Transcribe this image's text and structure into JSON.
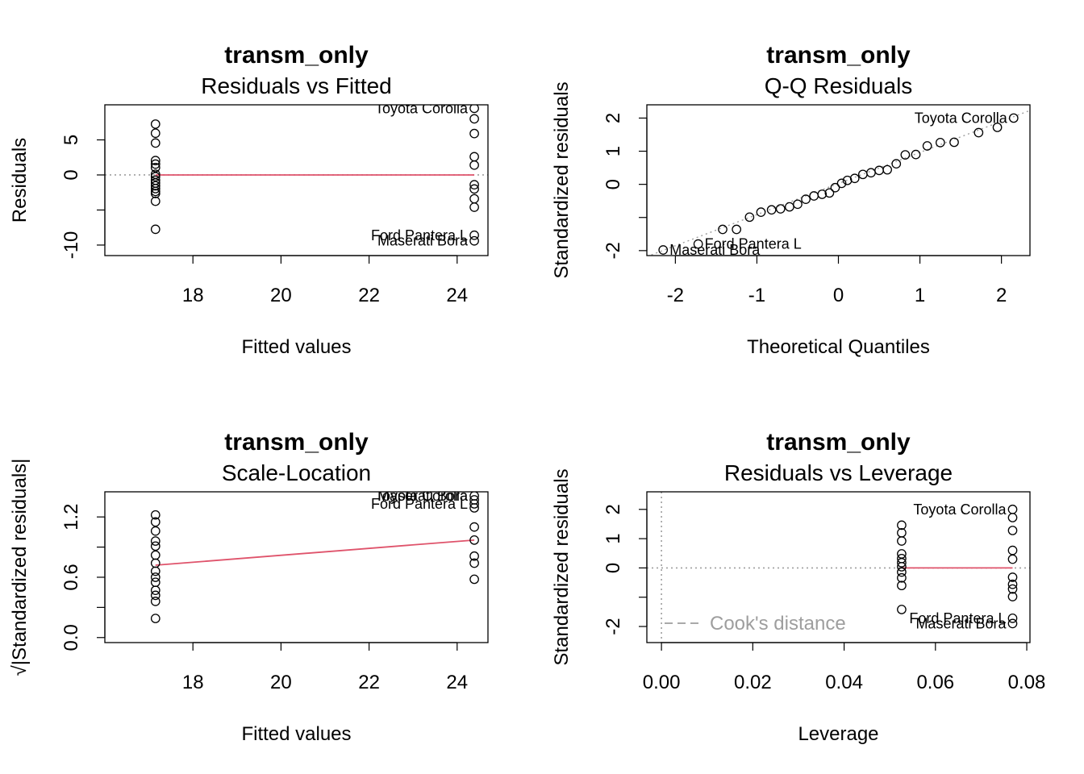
{
  "chart_data": [
    {
      "type": "scatter",
      "title": "transm_only",
      "subtitle": "Residuals vs Fitted",
      "xlabel": "Fitted values",
      "ylabel": "Residuals",
      "xlim": [
        16.0,
        24.7
      ],
      "ylim": [
        -11.5,
        10.0
      ],
      "xticks": [
        18,
        20,
        22,
        24
      ],
      "yticks": [
        -10,
        -5,
        0,
        5
      ],
      "ytick_labels": [
        "-10",
        "",
        "0",
        "5"
      ],
      "points": [
        {
          "x": 17.15,
          "y": -7.75
        },
        {
          "x": 17.15,
          "y": -3.75
        },
        {
          "x": 17.15,
          "y": -2.65
        },
        {
          "x": 17.15,
          "y": -2.35
        },
        {
          "x": 17.15,
          "y": -1.95
        },
        {
          "x": 17.15,
          "y": -1.55
        },
        {
          "x": 17.15,
          "y": -1.15
        },
        {
          "x": 17.15,
          "y": -0.75
        },
        {
          "x": 17.15,
          "y": -0.25
        },
        {
          "x": 17.15,
          "y": 0.1
        },
        {
          "x": 17.15,
          "y": 1.05
        },
        {
          "x": 17.15,
          "y": 1.55
        },
        {
          "x": 17.15,
          "y": 2.05
        },
        {
          "x": 17.15,
          "y": 4.55
        },
        {
          "x": 17.15,
          "y": 5.95
        },
        {
          "x": 17.15,
          "y": 7.25
        },
        {
          "x": 24.39,
          "y": -9.4
        },
        {
          "x": 24.39,
          "y": -8.6
        },
        {
          "x": 24.39,
          "y": -4.6
        },
        {
          "x": 24.39,
          "y": -3.4
        },
        {
          "x": 24.39,
          "y": -2.0
        },
        {
          "x": 24.39,
          "y": -1.4
        },
        {
          "x": 24.39,
          "y": 1.4
        },
        {
          "x": 24.39,
          "y": 2.6
        },
        {
          "x": 24.39,
          "y": 5.9
        },
        {
          "x": 24.39,
          "y": 8.0
        },
        {
          "x": 24.39,
          "y": 9.5
        }
      ],
      "hline": 0,
      "smooth": [
        [
          17.15,
          0.0
        ],
        [
          24.39,
          0.0
        ]
      ],
      "annotations": [
        {
          "text": "Toyota Corolla",
          "x": 24.39,
          "y": 9.5
        },
        {
          "text": "Ford Pantera L",
          "x": 24.39,
          "y": -8.6
        },
        {
          "text": "Maserati Bora",
          "x": 24.39,
          "y": -9.4
        }
      ]
    },
    {
      "type": "scatter",
      "title": "transm_only",
      "subtitle": "Q-Q Residuals",
      "xlabel": "Theoretical Quantiles",
      "ylabel": "Standardized residuals",
      "xlim": [
        -2.35,
        2.35
      ],
      "ylim": [
        -2.15,
        2.4
      ],
      "xticks": [
        -2,
        -1,
        0,
        1,
        2
      ],
      "yticks": [
        -2,
        -1,
        0,
        1,
        2
      ],
      "ytick_labels": [
        "-2",
        "",
        "0",
        "1",
        "2"
      ],
      "points": [
        {
          "x": -2.15,
          "y": -1.98
        },
        {
          "x": -1.72,
          "y": -1.8
        },
        {
          "x": -1.42,
          "y": -1.36
        },
        {
          "x": -1.25,
          "y": -1.36
        },
        {
          "x": -1.09,
          "y": -0.99
        },
        {
          "x": -0.95,
          "y": -0.84
        },
        {
          "x": -0.82,
          "y": -0.77
        },
        {
          "x": -0.71,
          "y": -0.74
        },
        {
          "x": -0.6,
          "y": -0.68
        },
        {
          "x": -0.5,
          "y": -0.6
        },
        {
          "x": -0.4,
          "y": -0.45
        },
        {
          "x": -0.3,
          "y": -0.35
        },
        {
          "x": -0.2,
          "y": -0.3
        },
        {
          "x": -0.11,
          "y": -0.26
        },
        {
          "x": -0.04,
          "y": -0.1
        },
        {
          "x": 0.04,
          "y": 0.03
        },
        {
          "x": 0.11,
          "y": 0.12
        },
        {
          "x": 0.2,
          "y": 0.18
        },
        {
          "x": 0.3,
          "y": 0.3
        },
        {
          "x": 0.4,
          "y": 0.35
        },
        {
          "x": 0.5,
          "y": 0.42
        },
        {
          "x": 0.6,
          "y": 0.44
        },
        {
          "x": 0.71,
          "y": 0.62
        },
        {
          "x": 0.82,
          "y": 0.89
        },
        {
          "x": 0.95,
          "y": 0.9
        },
        {
          "x": 1.09,
          "y": 1.16
        },
        {
          "x": 1.25,
          "y": 1.26
        },
        {
          "x": 1.42,
          "y": 1.27
        },
        {
          "x": 1.72,
          "y": 1.56
        },
        {
          "x": 1.95,
          "y": 1.72
        },
        {
          "x": 2.15,
          "y": 2.0
        }
      ],
      "refline": [
        [
          -2.35,
          -2.18
        ],
        [
          2.35,
          2.23
        ]
      ],
      "annotations": [
        {
          "text": "Toyota Corolla",
          "x": 2.15,
          "y": 2.0
        },
        {
          "text": "Ford Pantera L",
          "x": -1.72,
          "y": -1.8
        },
        {
          "text": "Maserati Bora",
          "x": -2.15,
          "y": -1.98
        }
      ]
    },
    {
      "type": "scatter",
      "title": "transm_only",
      "subtitle": "Scale-Location",
      "xlabel": "Fitted values",
      "ylabel": "√|Standardized residuals|",
      "xlim": [
        16.0,
        24.7
      ],
      "ylim": [
        -0.05,
        1.45
      ],
      "xticks": [
        18,
        20,
        22,
        24
      ],
      "yticks": [
        0.0,
        0.3,
        0.6,
        0.9,
        1.2
      ],
      "ytick_labels": [
        "0.0",
        "",
        "0.6",
        "",
        "1.2"
      ],
      "points": [
        {
          "x": 17.15,
          "y": 0.19
        },
        {
          "x": 17.15,
          "y": 0.36
        },
        {
          "x": 17.15,
          "y": 0.42
        },
        {
          "x": 17.15,
          "y": 0.47
        },
        {
          "x": 17.15,
          "y": 0.55
        },
        {
          "x": 17.15,
          "y": 0.6
        },
        {
          "x": 17.15,
          "y": 0.66
        },
        {
          "x": 17.15,
          "y": 0.74
        },
        {
          "x": 17.15,
          "y": 0.82
        },
        {
          "x": 17.15,
          "y": 0.91
        },
        {
          "x": 17.15,
          "y": 0.96
        },
        {
          "x": 17.15,
          "y": 1.06
        },
        {
          "x": 17.15,
          "y": 1.15
        },
        {
          "x": 17.15,
          "y": 1.22
        },
        {
          "x": 24.39,
          "y": 0.58
        },
        {
          "x": 24.39,
          "y": 0.74
        },
        {
          "x": 24.39,
          "y": 0.81
        },
        {
          "x": 24.39,
          "y": 0.97
        },
        {
          "x": 24.39,
          "y": 1.1
        },
        {
          "x": 24.39,
          "y": 1.29
        },
        {
          "x": 24.39,
          "y": 1.33
        },
        {
          "x": 24.39,
          "y": 1.37
        },
        {
          "x": 24.39,
          "y": 1.41
        }
      ],
      "smooth": [
        [
          17.15,
          0.72
        ],
        [
          24.39,
          0.97
        ]
      ],
      "annotations": [
        {
          "text": "Maserati Bora",
          "x": 24.39,
          "y": 1.41
        },
        {
          "text": "Toyota Corolla",
          "x": 24.39,
          "y": 1.41
        },
        {
          "text": "Ford Pantera L",
          "x": 24.39,
          "y": 1.33
        }
      ]
    },
    {
      "type": "scatter",
      "title": "transm_only",
      "subtitle": "Residuals vs Leverage",
      "xlabel": "Leverage",
      "ylabel": "Standardized residuals",
      "xlim": [
        -0.0032,
        0.0807
      ],
      "ylim": [
        -2.55,
        2.6
      ],
      "xticks": [
        0.0,
        0.02,
        0.04,
        0.06,
        0.08
      ],
      "xtick_labels": [
        "0.00",
        "0.02",
        "0.04",
        "0.06",
        "0.08"
      ],
      "yticks": [
        -2,
        -1,
        0,
        1,
        2
      ],
      "ytick_labels": [
        "-2",
        "",
        "0",
        "1",
        "2"
      ],
      "points": [
        {
          "x": 0.0526,
          "y": -1.42
        },
        {
          "x": 0.0526,
          "y": -0.6
        },
        {
          "x": 0.0526,
          "y": -0.34
        },
        {
          "x": 0.0526,
          "y": -0.14
        },
        {
          "x": 0.0526,
          "y": 0.04
        },
        {
          "x": 0.0526,
          "y": 0.18
        },
        {
          "x": 0.0526,
          "y": 0.32
        },
        {
          "x": 0.0526,
          "y": 0.48
        },
        {
          "x": 0.0526,
          "y": 0.92
        },
        {
          "x": 0.0526,
          "y": 1.2
        },
        {
          "x": 0.0526,
          "y": 1.46
        },
        {
          "x": 0.0769,
          "y": -1.9
        },
        {
          "x": 0.0769,
          "y": -1.72
        },
        {
          "x": 0.0769,
          "y": -0.98
        },
        {
          "x": 0.0769,
          "y": -0.72
        },
        {
          "x": 0.0769,
          "y": -0.56
        },
        {
          "x": 0.0769,
          "y": -0.32
        },
        {
          "x": 0.0769,
          "y": 0.3
        },
        {
          "x": 0.0769,
          "y": 0.6
        },
        {
          "x": 0.0769,
          "y": 1.28
        },
        {
          "x": 0.0769,
          "y": 1.72
        },
        {
          "x": 0.0769,
          "y": 2.0
        }
      ],
      "smooth": [
        [
          0.0526,
          0.0
        ],
        [
          0.0769,
          0.0
        ]
      ],
      "hline": 0,
      "vline": 0,
      "legend": {
        "label": "Cook's distance",
        "position": "bottom-left"
      },
      "annotations": [
        {
          "text": "Toyota Corolla",
          "x": 0.0769,
          "y": 2.0
        },
        {
          "text": "Ford Pantera L",
          "x": 0.0769,
          "y": -1.72
        },
        {
          "text": "Maserati Bora",
          "x": 0.0769,
          "y": -1.9
        }
      ]
    }
  ],
  "colors": {
    "smooth": "#DF536B",
    "reference": "#9e9e9e",
    "axis": "#000000"
  }
}
